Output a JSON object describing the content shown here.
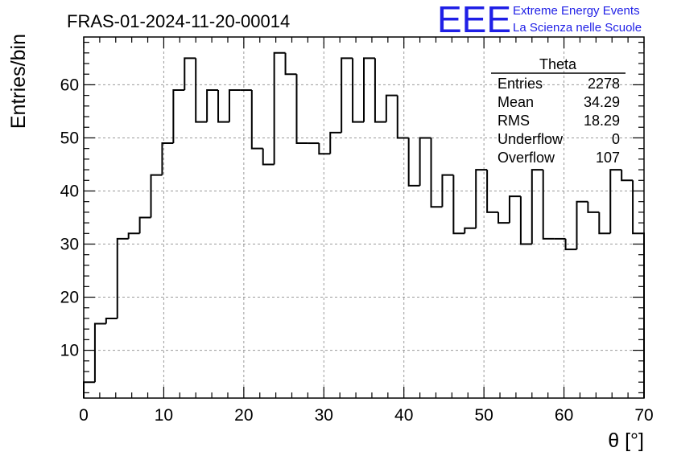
{
  "chart_data": {
    "type": "bar",
    "title": "FRAS-01-2024-11-20-00014",
    "xlabel": "θ [°]",
    "ylabel": "Entries/bin",
    "xlim": [
      0,
      70
    ],
    "ylim": [
      1,
      69
    ],
    "bin_width": 1.4,
    "bin_low_edges": [
      0,
      1.4,
      2.8,
      4.2,
      5.6,
      7,
      8.4,
      9.8,
      11.2,
      12.6,
      14,
      15.4,
      16.8,
      18.2,
      19.6,
      21,
      22.4,
      23.8,
      25.2,
      26.6,
      28,
      29.4,
      30.8,
      32.2,
      33.6,
      35,
      36.4,
      37.8,
      39.2,
      40.6,
      42,
      43.4,
      44.8,
      46.2,
      47.6,
      49,
      50.4,
      51.8,
      53.2,
      54.6,
      56,
      57.4,
      58.8,
      60.2,
      61.6,
      63,
      64.4,
      65.8,
      67.2,
      68.6
    ],
    "values": [
      4,
      15,
      16,
      31,
      32,
      35,
      43,
      49,
      59,
      65,
      53,
      59,
      53,
      59,
      59,
      48,
      45,
      66,
      62,
      49,
      49,
      47,
      51,
      65,
      53,
      65,
      53,
      58,
      50,
      41,
      50,
      37,
      43,
      32,
      33,
      44,
      36,
      34,
      39,
      30,
      44,
      31,
      31,
      29,
      38,
      36,
      32,
      44,
      42,
      32
    ],
    "x_ticks": [
      0,
      10,
      20,
      30,
      40,
      50,
      60,
      70
    ],
    "y_ticks": [
      10,
      20,
      30,
      40,
      50,
      60
    ],
    "grid": true,
    "stats_box": {
      "title": "Theta",
      "rows": [
        {
          "label": "Entries",
          "value": "2278"
        },
        {
          "label": "Mean",
          "value": "34.29"
        },
        {
          "label": "RMS",
          "value": "18.29"
        },
        {
          "label": "Underflow",
          "value": "0"
        },
        {
          "label": "Overflow",
          "value": "107"
        }
      ],
      "placement": "top-right"
    }
  },
  "logo": {
    "letters": "EEE",
    "line1": "Extreme Energy Events",
    "line2": "La Scienza nelle Scuole",
    "color": "#1f1fe6"
  },
  "colors": {
    "histogram_line": "#000000",
    "grid": "#9a9a9a"
  }
}
